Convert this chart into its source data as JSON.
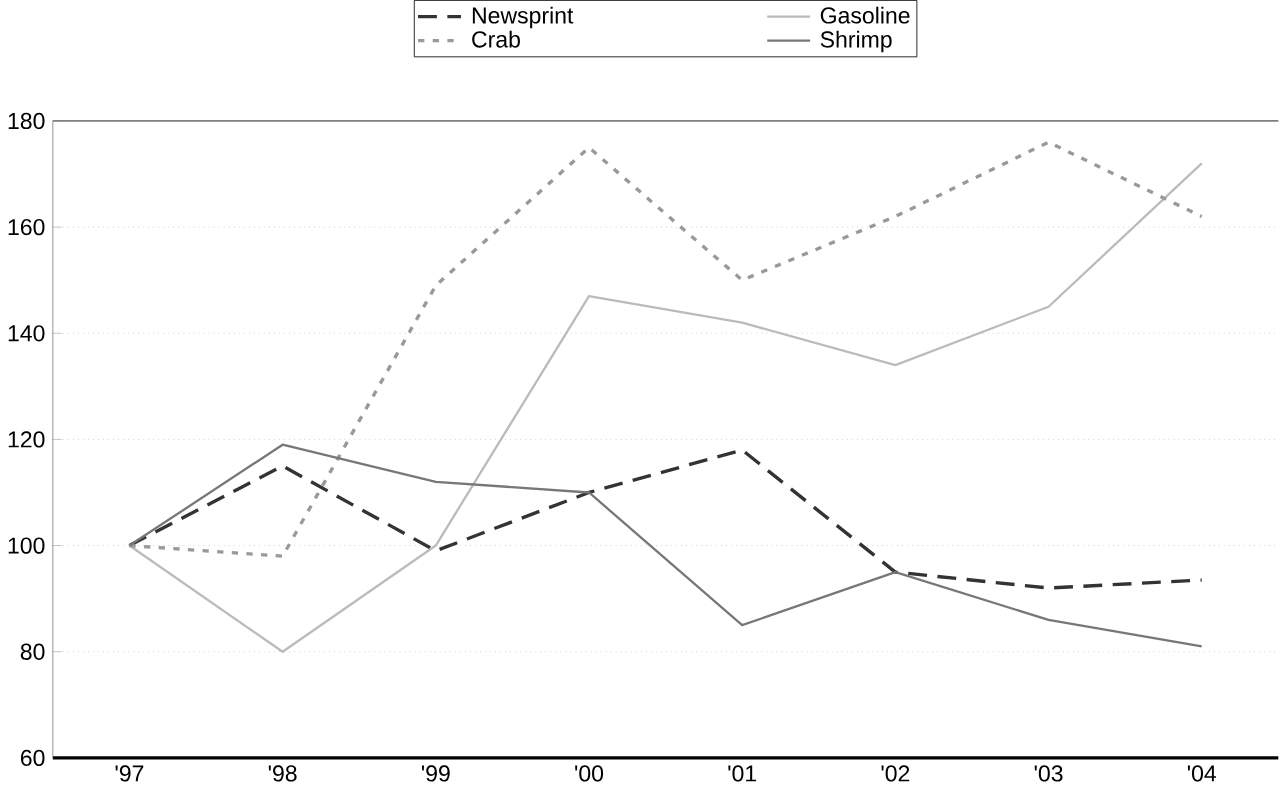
{
  "chart_data": {
    "type": "line",
    "categories": [
      "'97",
      "'98",
      "'99",
      "'00",
      "'01",
      "'02",
      "'03",
      "'04"
    ],
    "series": [
      {
        "name": "Newsprint",
        "color": "#333333",
        "line_style": "dashed",
        "values": [
          100,
          115,
          99,
          110,
          118,
          95,
          92,
          93.5
        ]
      },
      {
        "name": "Gasoline",
        "color": "#bbbbbb",
        "line_style": "solid",
        "values": [
          100,
          80,
          100,
          147,
          142,
          134,
          145,
          172
        ]
      },
      {
        "name": "Crab",
        "color": "#999999",
        "line_style": "dotted",
        "values": [
          100,
          98,
          149,
          175,
          150,
          162,
          176,
          162
        ]
      },
      {
        "name": "Shrimp",
        "color": "#777777",
        "line_style": "solid",
        "values": [
          100,
          119,
          112,
          110,
          85,
          95,
          86,
          81
        ]
      }
    ],
    "ylim": [
      60,
      180
    ],
    "yticks": [
      60,
      80,
      100,
      120,
      140,
      160,
      180
    ],
    "grid": "y",
    "legend": "top",
    "marker": "none"
  }
}
